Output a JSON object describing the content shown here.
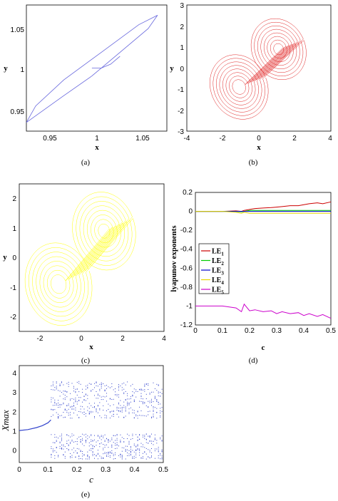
{
  "chart_data": [
    {
      "id": "a",
      "type": "line",
      "caption": "(a)",
      "xlabel": "x",
      "ylabel": "y",
      "xlim": [
        0.93,
        1.08
      ],
      "ylim": [
        0.92,
        1.08
      ],
      "xticks": [
        "0.95",
        "1",
        "1.05"
      ],
      "yticks": [
        "0.95",
        "1",
        "1.05"
      ],
      "series": [
        {
          "color": "#6666dd",
          "x": [
            0.93,
            0.97,
            1.0,
            1.03,
            1.06,
            1.07,
            1.05,
            1.01,
            0.97,
            0.94,
            0.93
          ],
          "y": [
            0.931,
            0.965,
            0.99,
            1.02,
            1.05,
            1.067,
            1.055,
            1.02,
            0.985,
            0.952,
            0.931
          ]
        },
        {
          "color": "#6666dd",
          "x": [
            1.0,
            1.01,
            1.02,
            1.03
          ],
          "y": [
            1.0,
            1.0,
            1.005,
            1.015
          ]
        }
      ]
    },
    {
      "id": "b",
      "type": "line",
      "caption": "(b)",
      "xlabel": "x",
      "ylabel": "y",
      "xlim": [
        -4,
        4
      ],
      "ylim": [
        -3,
        3
      ],
      "xticks": [
        "-4",
        "-2",
        "0",
        "2",
        "4"
      ],
      "yticks": [
        "-3",
        "-2",
        "-1",
        "0",
        "1",
        "2",
        "3"
      ],
      "color": "#e02020",
      "attractor": "two-scroll"
    },
    {
      "id": "c",
      "type": "line",
      "caption": "(c)",
      "xlabel": "x",
      "ylabel": "y",
      "xlim": [
        -3,
        4
      ],
      "ylim": [
        -2.5,
        2.5
      ],
      "xticks": [
        "-2",
        "0",
        "2",
        "4"
      ],
      "yticks": [
        "-2",
        "-1",
        "0",
        "1",
        "2"
      ],
      "color": "#ffff00",
      "attractor": "two-scroll"
    },
    {
      "id": "d",
      "type": "line",
      "caption": "(d)",
      "xlabel": "c",
      "ylabel": "lyapunov exponents",
      "xlim": [
        0,
        0.5
      ],
      "ylim": [
        -1.2,
        0.2
      ],
      "xticks": [
        "0",
        "0.1",
        "0.2",
        "0.3",
        "0.4",
        "0.5"
      ],
      "yticks": [
        "0.2",
        "0",
        "-0.2",
        "-0.4",
        "-0.6",
        "-0.8",
        "-1",
        "-1.2"
      ],
      "x": [
        0,
        0.05,
        0.1,
        0.15,
        0.17,
        0.18,
        0.2,
        0.22,
        0.25,
        0.28,
        0.3,
        0.32,
        0.35,
        0.38,
        0.4,
        0.42,
        0.45,
        0.47,
        0.5
      ],
      "series": [
        {
          "name": "LE",
          "sub": "1",
          "color": "#cc0000",
          "values": [
            0,
            0,
            0,
            0.005,
            0.0,
            0.01,
            0.02,
            0.03,
            0.035,
            0.04,
            0.045,
            0.05,
            0.06,
            0.06,
            0.07,
            0.08,
            0.09,
            0.08,
            0.1
          ]
        },
        {
          "name": "LE",
          "sub": "2",
          "color": "#00cc00",
          "values": [
            0,
            0,
            0,
            0,
            -0.005,
            0,
            0.01,
            0.01,
            0.01,
            0.01,
            0.01,
            0.01,
            0.01,
            0.01,
            0.01,
            0.01,
            0.01,
            0.01,
            0.01
          ]
        },
        {
          "name": "LE",
          "sub": "3",
          "color": "#0000cc",
          "values": [
            0,
            0,
            0,
            0,
            0,
            0,
            0,
            0,
            0,
            0,
            0,
            0,
            0,
            0,
            0,
            0,
            0,
            0,
            0
          ]
        },
        {
          "name": "LE",
          "sub": "4",
          "color": "#e6d800",
          "values": [
            0,
            0,
            0,
            -0.01,
            -0.02,
            -0.01,
            -0.02,
            -0.02,
            -0.02,
            -0.02,
            -0.02,
            -0.02,
            -0.02,
            -0.02,
            -0.02,
            -0.02,
            -0.02,
            -0.02,
            -0.02
          ]
        },
        {
          "name": "LE",
          "sub": "5",
          "color": "#cc00cc",
          "values": [
            -1.0,
            -1.0,
            -1.0,
            -1.02,
            -1.06,
            -0.98,
            -1.05,
            -1.04,
            -1.06,
            -1.05,
            -1.08,
            -1.06,
            -1.08,
            -1.07,
            -1.1,
            -1.08,
            -1.11,
            -1.09,
            -1.13
          ]
        }
      ]
    },
    {
      "id": "e",
      "type": "scatter",
      "caption": "(e)",
      "xlabel": "c",
      "ylabel": "Xmax",
      "xlim": [
        0,
        0.5
      ],
      "ylim": [
        -0.6,
        4.4
      ],
      "xticks": [
        "0",
        "0.1",
        "0.2",
        "0.3",
        "0.4",
        "0.5"
      ],
      "yticks": [
        "4",
        "3",
        "2",
        "1",
        "0"
      ],
      "color": "#3344cc",
      "periodic_branch": {
        "x": [
          0.0,
          0.03,
          0.06,
          0.08,
          0.1,
          0.11
        ],
        "y": [
          1.05,
          1.1,
          1.2,
          1.3,
          1.45,
          1.6
        ]
      }
    }
  ]
}
